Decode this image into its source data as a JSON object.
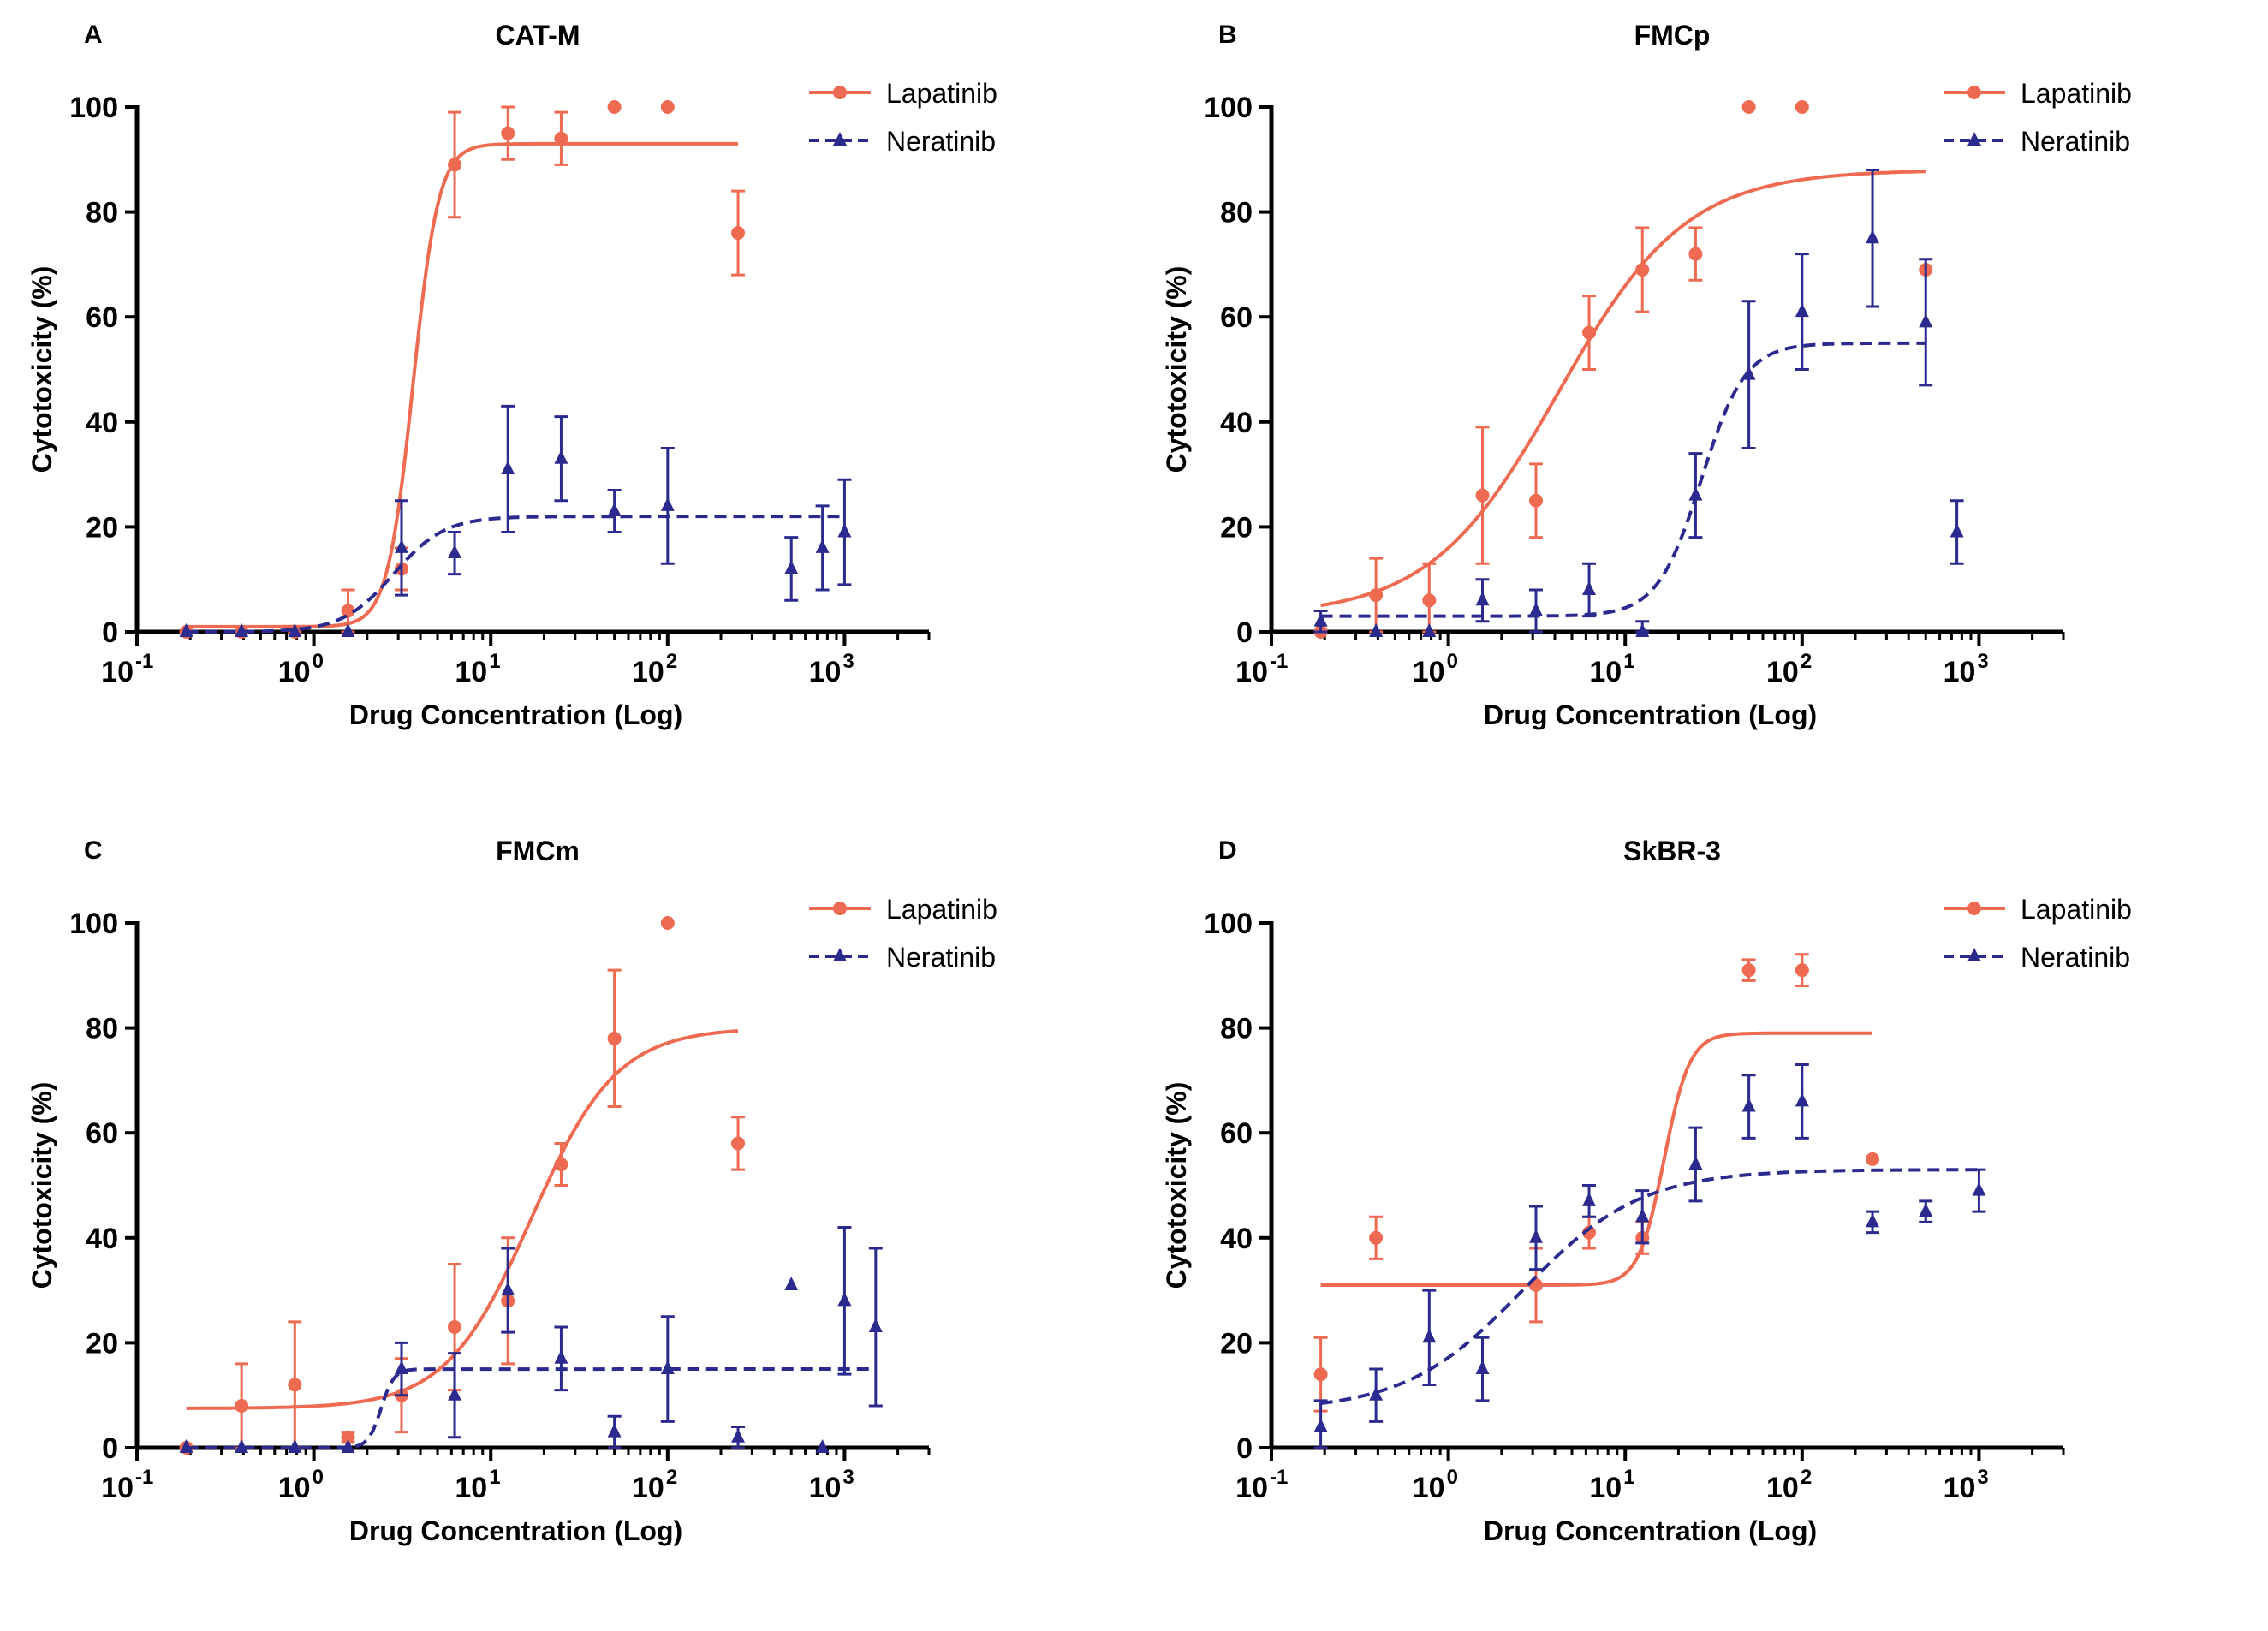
{
  "figure": {
    "axis_labels": {
      "xlabel": "Drug Concentration (Log)",
      "ylabel": "Cytotoxicity (%)"
    },
    "colors": {
      "lapatinib": "#ee6a50",
      "neratinib": "#2b2b8f",
      "axis": "#000000"
    }
  },
  "chart_data": [
    {
      "panel": "A",
      "type": "scatter",
      "title": "CAT-M",
      "xlabel": "Drug Concentration (Log)",
      "ylabel": "Cytotoxicity (%)",
      "x_scale": "log",
      "xlim": [
        0.1,
        3000
      ],
      "ylim": [
        0,
        100
      ],
      "x_ticks": [
        {
          "base": "10",
          "exp": "-1"
        },
        {
          "base": "10",
          "exp": "0"
        },
        {
          "base": "10",
          "exp": "1"
        },
        {
          "base": "10",
          "exp": "2"
        },
        {
          "base": "10",
          "exp": "3"
        }
      ],
      "y_ticks": [
        "0",
        "20",
        "40",
        "60",
        "80",
        "100"
      ],
      "legend": [
        {
          "label": "Lapatinib",
          "style": "solid-circle"
        },
        {
          "label": "Neratinib",
          "style": "dashed-triangle"
        }
      ],
      "series": [
        {
          "name": "Lapatinib",
          "marker": "circle",
          "line": "solid",
          "points": [
            [
              0.19,
              0,
              0
            ],
            [
              0.39,
              0,
              0
            ],
            [
              0.78,
              0,
              0
            ],
            [
              1.56,
              4,
              4
            ],
            [
              3.13,
              12,
              4
            ],
            [
              6.25,
              89,
              10
            ],
            [
              12.5,
              95,
              5
            ],
            [
              25,
              94,
              5
            ],
            [
              50,
              100,
              0
            ],
            [
              100,
              100,
              0
            ],
            [
              250,
              76,
              8
            ]
          ],
          "fit": {
            "bottom": 1,
            "top": 93,
            "logEC50": 0.56,
            "hill": 6,
            "x_range": [
              0.19,
              250
            ]
          }
        },
        {
          "name": "Neratinib",
          "marker": "triangle",
          "line": "dashed",
          "points": [
            [
              0.19,
              0,
              0
            ],
            [
              0.39,
              0,
              0
            ],
            [
              0.78,
              0,
              0
            ],
            [
              1.56,
              0,
              0
            ],
            [
              3.13,
              16,
              9
            ],
            [
              6.25,
              15,
              4
            ],
            [
              12.5,
              31,
              12
            ],
            [
              25,
              33,
              8
            ],
            [
              50,
              23,
              4
            ],
            [
              100,
              24,
              11
            ],
            [
              500,
              12,
              6
            ],
            [
              750,
              16,
              8
            ],
            [
              1000,
              19,
              10
            ]
          ],
          "fit": {
            "bottom": 0,
            "top": 22,
            "logEC50": 0.45,
            "hill": 3,
            "x_range": [
              0.19,
              1000
            ]
          }
        }
      ]
    },
    {
      "panel": "B",
      "type": "scatter",
      "title": "FMCp",
      "xlabel": "Drug Concentration (Log)",
      "ylabel": "Cytotoxicity (%)",
      "x_scale": "log",
      "xlim": [
        0.1,
        3000
      ],
      "ylim": [
        0,
        100
      ],
      "x_ticks": [
        {
          "base": "10",
          "exp": "-1"
        },
        {
          "base": "10",
          "exp": "0"
        },
        {
          "base": "10",
          "exp": "1"
        },
        {
          "base": "10",
          "exp": "2"
        },
        {
          "base": "10",
          "exp": "3"
        }
      ],
      "y_ticks": [
        "0",
        "20",
        "40",
        "60",
        "80",
        "100"
      ],
      "legend": [
        {
          "label": "Lapatinib",
          "style": "solid-circle"
        },
        {
          "label": "Neratinib",
          "style": "dashed-triangle"
        }
      ],
      "series": [
        {
          "name": "Lapatinib",
          "marker": "circle",
          "line": "solid",
          "points": [
            [
              0.19,
              0,
              0
            ],
            [
              0.39,
              7,
              7
            ],
            [
              0.78,
              6,
              7
            ],
            [
              1.56,
              26,
              13
            ],
            [
              3.13,
              25,
              7
            ],
            [
              6.25,
              57,
              7
            ],
            [
              12.5,
              69,
              8
            ],
            [
              25,
              72,
              5
            ],
            [
              50,
              100,
              0
            ],
            [
              100,
              100,
              0
            ],
            [
              500,
              69,
              0
            ]
          ],
          "fit": {
            "bottom": 3,
            "top": 88,
            "logEC50": 0.62,
            "hill": 1.2,
            "x_range": [
              0.19,
              500
            ]
          }
        },
        {
          "name": "Neratinib",
          "marker": "triangle",
          "line": "dashed",
          "points": [
            [
              0.19,
              2,
              2
            ],
            [
              0.39,
              0,
              0
            ],
            [
              0.78,
              0,
              0
            ],
            [
              1.56,
              6,
              4
            ],
            [
              3.13,
              4,
              4
            ],
            [
              6.25,
              8,
              5
            ],
            [
              12.5,
              0,
              2
            ],
            [
              25,
              26,
              8
            ],
            [
              50,
              49,
              14
            ],
            [
              100,
              61,
              11
            ],
            [
              250,
              75,
              13
            ],
            [
              500,
              59,
              12
            ],
            [
              750,
              19,
              6
            ]
          ],
          "fit": {
            "bottom": 3,
            "top": 55,
            "logEC50": 1.43,
            "hill": 3.5,
            "x_range": [
              0.19,
              500
            ]
          }
        }
      ]
    },
    {
      "panel": "C",
      "type": "scatter",
      "title": "FMCm",
      "xlabel": "Drug Concentration (Log)",
      "ylabel": "Cytotoxicity (%)",
      "x_scale": "log",
      "xlim": [
        0.1,
        3000
      ],
      "ylim": [
        0,
        100
      ],
      "x_ticks": [
        {
          "base": "10",
          "exp": "-1"
        },
        {
          "base": "10",
          "exp": "0"
        },
        {
          "base": "10",
          "exp": "1"
        },
        {
          "base": "10",
          "exp": "2"
        },
        {
          "base": "10",
          "exp": "3"
        }
      ],
      "y_ticks": [
        "0",
        "20",
        "40",
        "60",
        "80",
        "100"
      ],
      "legend": [
        {
          "label": "Lapatinib",
          "style": "solid-circle"
        },
        {
          "label": "Neratinib",
          "style": "dashed-triangle"
        }
      ],
      "series": [
        {
          "name": "Lapatinib",
          "marker": "circle",
          "line": "solid",
          "points": [
            [
              0.19,
              0,
              0
            ],
            [
              0.39,
              8,
              8
            ],
            [
              0.78,
              12,
              12
            ],
            [
              1.56,
              2,
              1
            ],
            [
              3.13,
              10,
              7
            ],
            [
              6.25,
              23,
              12
            ],
            [
              12.5,
              28,
              12
            ],
            [
              25,
              54,
              4
            ],
            [
              50,
              78,
              13
            ],
            [
              100,
              100,
              0
            ],
            [
              250,
              58,
              5
            ]
          ],
          "fit": {
            "bottom": 7.5,
            "top": 80,
            "logEC50": 1.23,
            "hill": 1.8,
            "x_range": [
              0.19,
              250
            ]
          }
        },
        {
          "name": "Neratinib",
          "marker": "triangle",
          "line": "dashed",
          "points": [
            [
              0.19,
              0,
              0
            ],
            [
              0.39,
              0,
              0
            ],
            [
              0.78,
              0,
              0
            ],
            [
              1.56,
              0,
              0
            ],
            [
              3.13,
              15,
              5
            ],
            [
              6.25,
              10,
              8
            ],
            [
              12.5,
              30,
              8
            ],
            [
              25,
              17,
              6
            ],
            [
              50,
              3,
              3
            ],
            [
              100,
              15,
              10
            ],
            [
              250,
              2,
              2
            ],
            [
              500,
              31,
              0
            ],
            [
              750,
              0,
              0
            ],
            [
              1000,
              28,
              14
            ],
            [
              1500,
              23,
              15
            ]
          ],
          "fit": {
            "bottom": 0,
            "top": 15,
            "logEC50": 0.38,
            "hill": 12,
            "x_range": [
              0.19,
              1500
            ]
          }
        }
      ]
    },
    {
      "panel": "D",
      "type": "scatter",
      "title": "SkBR-3",
      "xlabel": "Drug Concentration (Log)",
      "ylabel": "Cytotoxicity (%)",
      "x_scale": "log",
      "xlim": [
        0.1,
        3000
      ],
      "ylim": [
        0,
        100
      ],
      "x_ticks": [
        {
          "base": "10",
          "exp": "-1"
        },
        {
          "base": "10",
          "exp": "0"
        },
        {
          "base": "10",
          "exp": "1"
        },
        {
          "base": "10",
          "exp": "2"
        },
        {
          "base": "10",
          "exp": "3"
        }
      ],
      "y_ticks": [
        "0",
        "20",
        "40",
        "60",
        "80",
        "100"
      ],
      "legend": [
        {
          "label": "Lapatinib",
          "style": "solid-circle"
        },
        {
          "label": "Neratinib",
          "style": "dashed-triangle"
        }
      ],
      "series": [
        {
          "name": "Lapatinib",
          "marker": "circle",
          "line": "solid",
          "points": [
            [
              0.19,
              14,
              7
            ],
            [
              0.39,
              40,
              4
            ],
            [
              3.13,
              31,
              7
            ],
            [
              6.25,
              41,
              3
            ],
            [
              12.5,
              40,
              3
            ],
            [
              50,
              91,
              2
            ],
            [
              100,
              91,
              3
            ],
            [
              250,
              55,
              0
            ]
          ],
          "fit": {
            "bottom": 31,
            "top": 79,
            "logEC50": 1.22,
            "hill": 6,
            "x_range": [
              0.19,
              250
            ]
          }
        },
        {
          "name": "Neratinib",
          "marker": "triangle",
          "line": "dashed",
          "points": [
            [
              0.19,
              4,
              5
            ],
            [
              0.39,
              10,
              5
            ],
            [
              0.78,
              21,
              9
            ],
            [
              1.56,
              15,
              6
            ],
            [
              3.13,
              40,
              6
            ],
            [
              6.25,
              47,
              3
            ],
            [
              12.5,
              44,
              5
            ],
            [
              25,
              54,
              7
            ],
            [
              50,
              65,
              6
            ],
            [
              100,
              66,
              7
            ],
            [
              250,
              43,
              2
            ],
            [
              500,
              45,
              2
            ],
            [
              1000,
              49,
              4
            ]
          ],
          "fit": {
            "bottom": 7,
            "top": 53,
            "logEC50": 0.42,
            "hill": 1.3,
            "x_range": [
              0.19,
              1000
            ]
          }
        }
      ]
    }
  ]
}
